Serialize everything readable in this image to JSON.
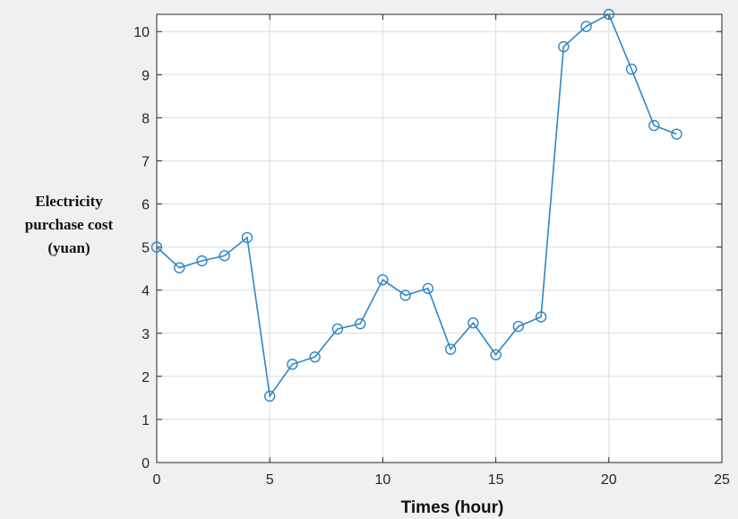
{
  "chart_data": {
    "type": "line",
    "title": "",
    "xlabel": "Times  (hour)",
    "ylabel_lines": [
      "Electricity",
      "purchase cost",
      "(yuan)"
    ],
    "xlim": [
      0,
      25
    ],
    "ylim": [
      0,
      10.4
    ],
    "xticks": [
      0,
      5,
      10,
      15,
      20,
      25
    ],
    "yticks": [
      0,
      1,
      2,
      3,
      4,
      5,
      6,
      7,
      8,
      9,
      10
    ],
    "grid": true,
    "series": [
      {
        "color": "#2f86c6",
        "marker": "circle",
        "x": [
          0,
          1,
          2,
          3,
          4,
          5,
          6,
          7,
          8,
          9,
          10,
          11,
          12,
          13,
          14,
          15,
          16,
          17,
          18,
          19,
          20,
          21,
          22,
          23
        ],
        "y": [
          5.0,
          4.52,
          4.68,
          4.8,
          5.22,
          1.54,
          2.28,
          2.45,
          3.1,
          3.22,
          4.24,
          3.88,
          4.04,
          2.63,
          3.24,
          2.5,
          3.16,
          3.38,
          9.65,
          10.12,
          10.4,
          9.13,
          7.82,
          7.62
        ]
      }
    ],
    "colors": {
      "background": "#f0f0f0",
      "plot_area": "#ffffff",
      "grid": "#dcdcdc",
      "axis": "#262626"
    }
  }
}
